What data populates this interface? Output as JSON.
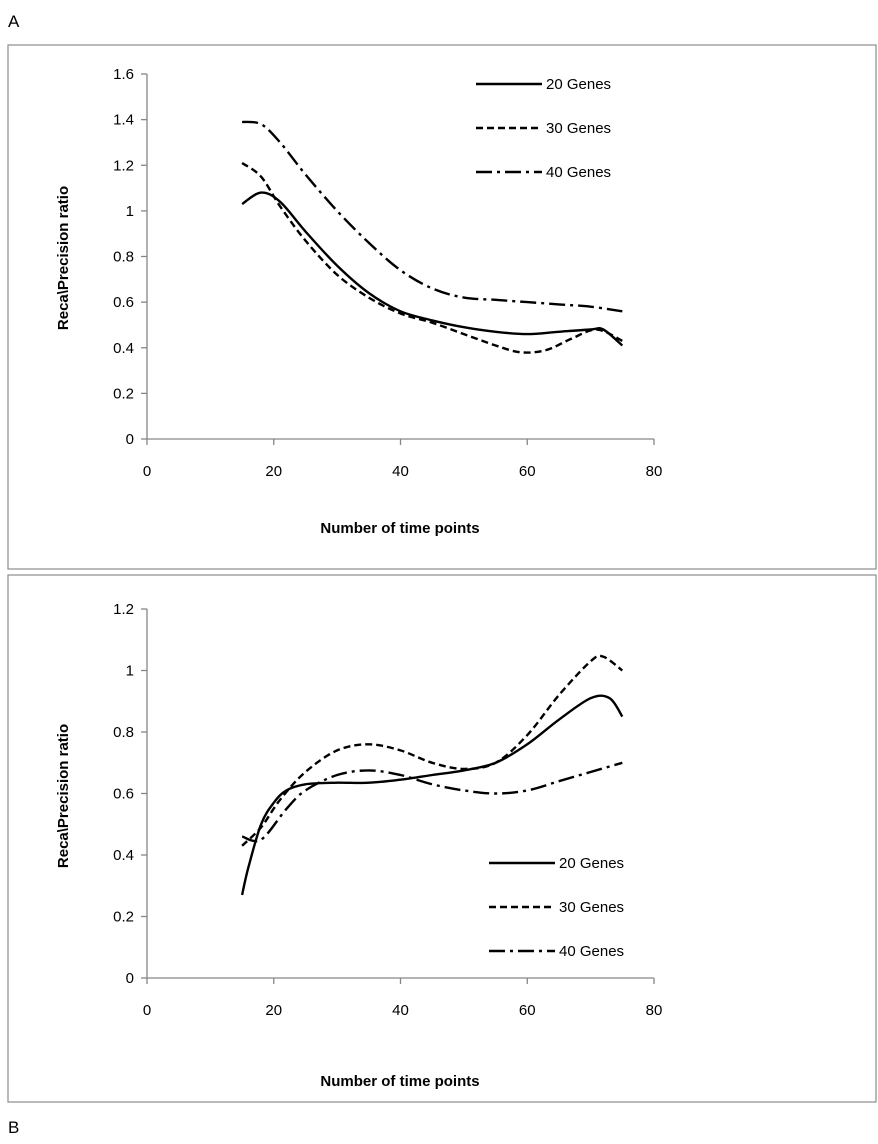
{
  "panels": {
    "top_letter": "A",
    "bottom_letter": "B"
  },
  "chart_data": [
    {
      "type": "line",
      "title": "",
      "xlabel": "Number of time points",
      "ylabel": "Reca\\Precision ratio",
      "xlim": [
        0,
        80
      ],
      "ylim": [
        0,
        1.6
      ],
      "xticks": [
        0,
        20,
        40,
        60,
        80
      ],
      "yticks": [
        0,
        0.2,
        0.4,
        0.6,
        0.8,
        1,
        1.2,
        1.4,
        1.6
      ],
      "ytick_labels": [
        "0",
        "0.2",
        "0.4",
        "0.6",
        "0.8",
        "1",
        "1.2",
        "1.4",
        "1.6"
      ],
      "grid": false,
      "legend_position": "top-right",
      "series": [
        {
          "name": "20 Genes",
          "dash": "solid",
          "points": [
            [
              15,
              1.03
            ],
            [
              18,
              1.08
            ],
            [
              21,
              1.04
            ],
            [
              25,
              0.91
            ],
            [
              30,
              0.76
            ],
            [
              35,
              0.64
            ],
            [
              40,
              0.56
            ],
            [
              45,
              0.52
            ],
            [
              50,
              0.49
            ],
            [
              55,
              0.47
            ],
            [
              60,
              0.46
            ],
            [
              65,
              0.47
            ],
            [
              70,
              0.48
            ],
            [
              72,
              0.48
            ],
            [
              75,
              0.41
            ]
          ]
        },
        {
          "name": "30 Genes",
          "dash": "dash",
          "points": [
            [
              15,
              1.21
            ],
            [
              18,
              1.15
            ],
            [
              21,
              1.02
            ],
            [
              25,
              0.87
            ],
            [
              30,
              0.72
            ],
            [
              35,
              0.62
            ],
            [
              40,
              0.55
            ],
            [
              45,
              0.51
            ],
            [
              50,
              0.46
            ],
            [
              55,
              0.41
            ],
            [
              59,
              0.38
            ],
            [
              63,
              0.39
            ],
            [
              67,
              0.44
            ],
            [
              71,
              0.48
            ],
            [
              75,
              0.43
            ]
          ]
        },
        {
          "name": "40 Genes",
          "dash": "dashdot",
          "points": [
            [
              15,
              1.39
            ],
            [
              18,
              1.38
            ],
            [
              21,
              1.3
            ],
            [
              25,
              1.16
            ],
            [
              30,
              1.0
            ],
            [
              35,
              0.86
            ],
            [
              40,
              0.74
            ],
            [
              45,
              0.66
            ],
            [
              50,
              0.62
            ],
            [
              55,
              0.61
            ],
            [
              60,
              0.6
            ],
            [
              65,
              0.59
            ],
            [
              70,
              0.58
            ],
            [
              75,
              0.56
            ]
          ]
        }
      ]
    },
    {
      "type": "line",
      "title": "",
      "xlabel": "Number of time points",
      "ylabel": "Reca\\Precision ratio",
      "xlim": [
        0,
        80
      ],
      "ylim": [
        0,
        1.2
      ],
      "xticks": [
        0,
        20,
        40,
        60,
        80
      ],
      "yticks": [
        0,
        0.2,
        0.4,
        0.6,
        0.8,
        1,
        1.2
      ],
      "ytick_labels": [
        "0",
        "0.2",
        "0.4",
        "0.6",
        "0.8",
        "1",
        "1.2"
      ],
      "grid": false,
      "legend_position": "bottom-right",
      "series": [
        {
          "name": "20 Genes",
          "dash": "solid",
          "points": [
            [
              15,
              0.27
            ],
            [
              16,
              0.36
            ],
            [
              18,
              0.5
            ],
            [
              20,
              0.57
            ],
            [
              22,
              0.61
            ],
            [
              25,
              0.63
            ],
            [
              30,
              0.635
            ],
            [
              35,
              0.635
            ],
            [
              40,
              0.645
            ],
            [
              45,
              0.66
            ],
            [
              50,
              0.675
            ],
            [
              55,
              0.7
            ],
            [
              60,
              0.76
            ],
            [
              65,
              0.84
            ],
            [
              70,
              0.91
            ],
            [
              73,
              0.91
            ],
            [
              75,
              0.85
            ]
          ]
        },
        {
          "name": "30 Genes",
          "dash": "dash",
          "points": [
            [
              15,
              0.43
            ],
            [
              18,
              0.49
            ],
            [
              21,
              0.58
            ],
            [
              25,
              0.67
            ],
            [
              30,
              0.74
            ],
            [
              35,
              0.76
            ],
            [
              40,
              0.74
            ],
            [
              45,
              0.7
            ],
            [
              50,
              0.68
            ],
            [
              55,
              0.7
            ],
            [
              60,
              0.79
            ],
            [
              65,
              0.92
            ],
            [
              70,
              1.03
            ],
            [
              72,
              1.045
            ],
            [
              75,
              1.0
            ]
          ]
        },
        {
          "name": "40 Genes",
          "dash": "dashdot",
          "points": [
            [
              15,
              0.46
            ],
            [
              18,
              0.45
            ],
            [
              22,
              0.55
            ],
            [
              25,
              0.61
            ],
            [
              30,
              0.66
            ],
            [
              35,
              0.675
            ],
            [
              40,
              0.66
            ],
            [
              45,
              0.63
            ],
            [
              50,
              0.61
            ],
            [
              55,
              0.6
            ],
            [
              60,
              0.61
            ],
            [
              65,
              0.64
            ],
            [
              70,
              0.67
            ],
            [
              75,
              0.7
            ]
          ]
        }
      ]
    }
  ]
}
